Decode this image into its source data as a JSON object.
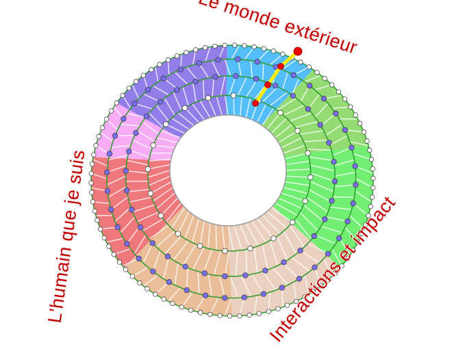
{
  "labels": {
    "top": "Le monde extérieur",
    "left": "L'humain que je suis",
    "right": "Interactions et impact"
  },
  "sectors": [
    {
      "color": "#44b8f8"
    },
    {
      "color": "#8cd868"
    },
    {
      "color": "#66ee66"
    },
    {
      "color": "#e8ccb8"
    },
    {
      "color": "#e8b890"
    },
    {
      "color": "#ee6c72"
    },
    {
      "color": "#f6a6f4"
    },
    {
      "color": "#8a72e6"
    }
  ],
  "colors": {
    "ring_line": "#2a9a2a",
    "node_inner": "#ffffff",
    "node_mid": "#7a6ef0",
    "path": "#ffee00",
    "path_node": "#ee0000",
    "label": "#c00000"
  }
}
